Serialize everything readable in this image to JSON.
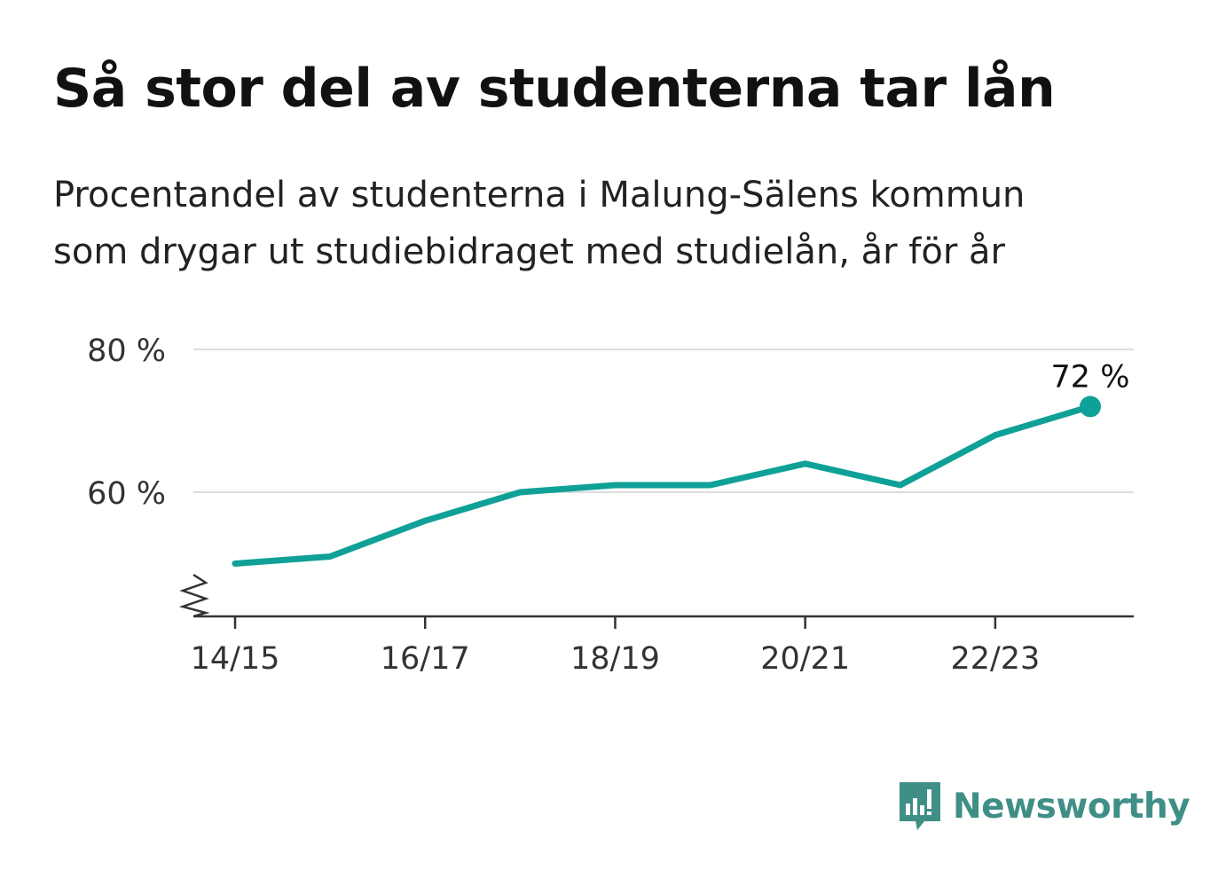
{
  "title": "Så stor del av studenterna tar lån",
  "subtitle_lines": [
    "Procentandel av studenterna i Malung-Sälens kommun",
    "som drygar ut studiebidraget med studielån, år för år"
  ],
  "chart_data": {
    "type": "line",
    "x": [
      "14/15",
      "15/16",
      "16/17",
      "17/18",
      "18/19",
      "19/20",
      "20/21",
      "21/22",
      "22/23",
      "23/24"
    ],
    "x_tick_labels": [
      "14/15",
      "16/17",
      "18/19",
      "20/21",
      "22/23"
    ],
    "series": [
      {
        "values": [
          50,
          51,
          56,
          60,
          61,
          61,
          64,
          61,
          68,
          72
        ]
      }
    ],
    "y_ticks": [
      60,
      80
    ],
    "y_tick_labels": [
      "60 %",
      "80 %"
    ],
    "ylim": [
      47,
      80
    ],
    "y_axis_break": true,
    "grid": "horizontal",
    "end_label": "72 %",
    "line_color": "#0fa197",
    "grid_color": "#dddddd",
    "axis_color": "#333333"
  },
  "logo": {
    "text": "Newsworthy",
    "icon": "bar-chart-speech-bubble-icon",
    "color": "#3f8f87"
  }
}
